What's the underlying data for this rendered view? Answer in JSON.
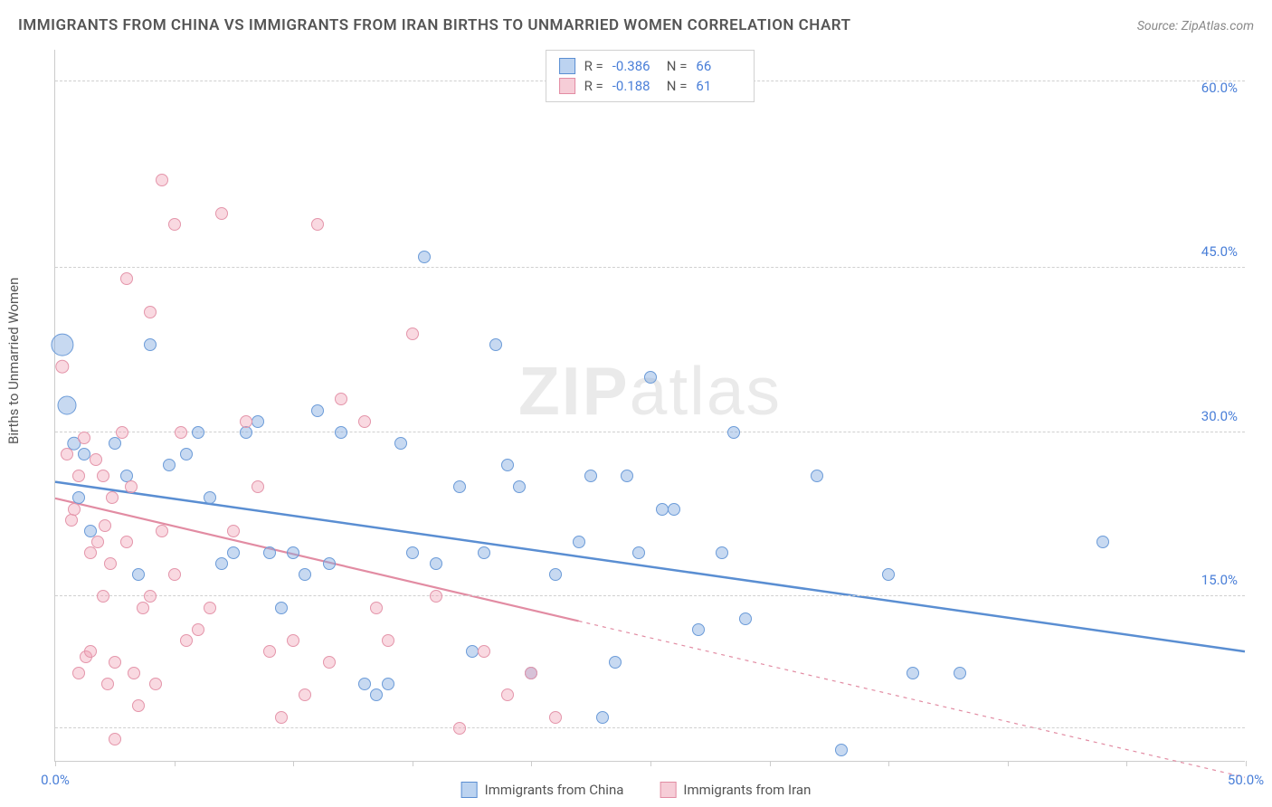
{
  "title": "IMMIGRANTS FROM CHINA VS IMMIGRANTS FROM IRAN BIRTHS TO UNMARRIED WOMEN CORRELATION CHART",
  "source": "Source: ZipAtlas.com",
  "watermark_a": "ZIP",
  "watermark_b": "atlas",
  "yaxis_label": "Births to Unmarried Women",
  "chart": {
    "type": "scatter",
    "xlim": [
      0,
      50
    ],
    "ylim": [
      0,
      65
    ],
    "xticks": [
      0,
      5,
      10,
      15,
      20,
      25,
      30,
      35,
      40,
      45,
      50
    ],
    "xtick_labels": {
      "0": "0.0%",
      "50": "50.0%"
    },
    "yticks": [
      15,
      30,
      45,
      60
    ],
    "ytick_labels": [
      "15.0%",
      "30.0%",
      "45.0%",
      "60.0%"
    ],
    "grid_y": [
      3,
      15,
      30,
      45,
      62
    ],
    "grid_color": "#d0d0d0",
    "background_color": "#ffffff",
    "axis_color": "#cccccc",
    "tick_label_color": "#4a7fd8",
    "series": [
      {
        "name": "Immigrants from China",
        "color_fill": "rgba(130,170,225,0.45)",
        "color_stroke": "#6b9bd8",
        "swatch_fill": "#bcd3f0",
        "swatch_stroke": "#5a8ed2",
        "r": "-0.386",
        "n": "66",
        "trend": {
          "x1": 0,
          "y1": 25.5,
          "x2": 50,
          "y2": 10.0,
          "solid_until": 50,
          "stroke_width": 2.5
        },
        "points": [
          [
            0.3,
            38,
            18
          ],
          [
            0.5,
            32.5,
            15
          ],
          [
            0.8,
            29,
            11
          ],
          [
            1.2,
            28,
            10
          ],
          [
            1.0,
            24,
            10
          ],
          [
            1.5,
            21,
            10
          ],
          [
            2.5,
            29,
            10
          ],
          [
            3.0,
            26,
            10
          ],
          [
            3.5,
            17,
            10
          ],
          [
            4.0,
            38,
            10
          ],
          [
            4.8,
            27,
            10
          ],
          [
            5.5,
            28,
            10
          ],
          [
            6.0,
            30,
            10
          ],
          [
            6.5,
            24,
            10
          ],
          [
            7.0,
            18,
            10
          ],
          [
            7.5,
            19,
            10
          ],
          [
            8.0,
            30,
            10
          ],
          [
            8.5,
            31,
            10
          ],
          [
            9.0,
            19,
            10
          ],
          [
            9.5,
            14,
            10
          ],
          [
            10.0,
            19,
            10
          ],
          [
            10.5,
            17,
            10
          ],
          [
            11.0,
            32,
            10
          ],
          [
            11.5,
            18,
            10
          ],
          [
            12.0,
            30,
            10
          ],
          [
            13.0,
            7,
            10
          ],
          [
            13.5,
            6,
            10
          ],
          [
            14.0,
            7,
            10
          ],
          [
            14.5,
            29,
            10
          ],
          [
            15.0,
            19,
            10
          ],
          [
            15.5,
            46,
            10
          ],
          [
            16.0,
            18,
            10
          ],
          [
            17.0,
            25,
            10
          ],
          [
            17.5,
            10,
            10
          ],
          [
            18.0,
            19,
            10
          ],
          [
            18.5,
            38,
            10
          ],
          [
            19.0,
            27,
            10
          ],
          [
            19.5,
            25,
            10
          ],
          [
            20.0,
            8,
            10
          ],
          [
            21.0,
            17,
            10
          ],
          [
            22.0,
            20,
            10
          ],
          [
            22.5,
            26,
            10
          ],
          [
            23.0,
            4,
            10
          ],
          [
            23.5,
            9,
            10
          ],
          [
            24.0,
            26,
            10
          ],
          [
            24.5,
            19,
            10
          ],
          [
            25.0,
            35,
            10
          ],
          [
            25.5,
            23,
            10
          ],
          [
            26.0,
            23,
            10
          ],
          [
            27.0,
            12,
            10
          ],
          [
            28.0,
            19,
            10
          ],
          [
            28.5,
            30,
            10
          ],
          [
            29.0,
            13,
            10
          ],
          [
            32.0,
            26,
            10
          ],
          [
            33.0,
            1,
            10
          ],
          [
            35.0,
            17,
            10
          ],
          [
            36.0,
            8,
            10
          ],
          [
            38.0,
            8,
            10
          ],
          [
            44.0,
            20,
            10
          ]
        ]
      },
      {
        "name": "Immigrants from Iran",
        "color_fill": "rgba(240,160,180,0.40)",
        "color_stroke": "#e495aa",
        "swatch_fill": "#f6cdd7",
        "swatch_stroke": "#e28ca3",
        "r": "-0.188",
        "n": "61",
        "trend": {
          "x1": 0,
          "y1": 24.0,
          "x2": 50,
          "y2": -1.5,
          "solid_until": 22,
          "stroke_width": 2.2
        },
        "points": [
          [
            0.3,
            36,
            11
          ],
          [
            0.5,
            28,
            10
          ],
          [
            0.7,
            22,
            10
          ],
          [
            0.8,
            23,
            10
          ],
          [
            1.0,
            26,
            10
          ],
          [
            1.0,
            8,
            10
          ],
          [
            1.2,
            29.5,
            10
          ],
          [
            1.3,
            9.5,
            10
          ],
          [
            1.5,
            19,
            10
          ],
          [
            1.5,
            10,
            10
          ],
          [
            1.7,
            27.5,
            10
          ],
          [
            1.8,
            20,
            10
          ],
          [
            2.0,
            26,
            10
          ],
          [
            2.0,
            15,
            10
          ],
          [
            2.1,
            21.5,
            10
          ],
          [
            2.2,
            7,
            10
          ],
          [
            2.3,
            18,
            10
          ],
          [
            2.4,
            24,
            10
          ],
          [
            2.5,
            2,
            10
          ],
          [
            2.5,
            9,
            10
          ],
          [
            2.8,
            30,
            10
          ],
          [
            3.0,
            44,
            10
          ],
          [
            3.0,
            20,
            10
          ],
          [
            3.2,
            25,
            10
          ],
          [
            3.3,
            8,
            10
          ],
          [
            3.5,
            5,
            10
          ],
          [
            3.7,
            14,
            10
          ],
          [
            4.0,
            41,
            10
          ],
          [
            4.0,
            15,
            10
          ],
          [
            4.2,
            7,
            10
          ],
          [
            4.5,
            53,
            10
          ],
          [
            4.5,
            21,
            10
          ],
          [
            5.0,
            49,
            10
          ],
          [
            5.0,
            17,
            10
          ],
          [
            5.3,
            30,
            10
          ],
          [
            5.5,
            11,
            10
          ],
          [
            6.0,
            12,
            10
          ],
          [
            6.5,
            14,
            10
          ],
          [
            7.0,
            50,
            10
          ],
          [
            7.5,
            21,
            10
          ],
          [
            8.0,
            31,
            10
          ],
          [
            8.5,
            25,
            10
          ],
          [
            9.0,
            10,
            10
          ],
          [
            9.5,
            4,
            10
          ],
          [
            10.0,
            11,
            10
          ],
          [
            10.5,
            6,
            10
          ],
          [
            11.0,
            49,
            10
          ],
          [
            11.5,
            9,
            10
          ],
          [
            12.0,
            33,
            10
          ],
          [
            13.0,
            31,
            10
          ],
          [
            13.5,
            14,
            10
          ],
          [
            14.0,
            11,
            10
          ],
          [
            15.0,
            39,
            10
          ],
          [
            16.0,
            15,
            10
          ],
          [
            17.0,
            3,
            10
          ],
          [
            18.0,
            10,
            10
          ],
          [
            19.0,
            6,
            10
          ],
          [
            20.0,
            8,
            10
          ],
          [
            21.0,
            4,
            10
          ]
        ]
      }
    ]
  },
  "legend_bottom": [
    {
      "label": "Immigrants from China"
    },
    {
      "label": "Immigrants from Iran"
    }
  ]
}
